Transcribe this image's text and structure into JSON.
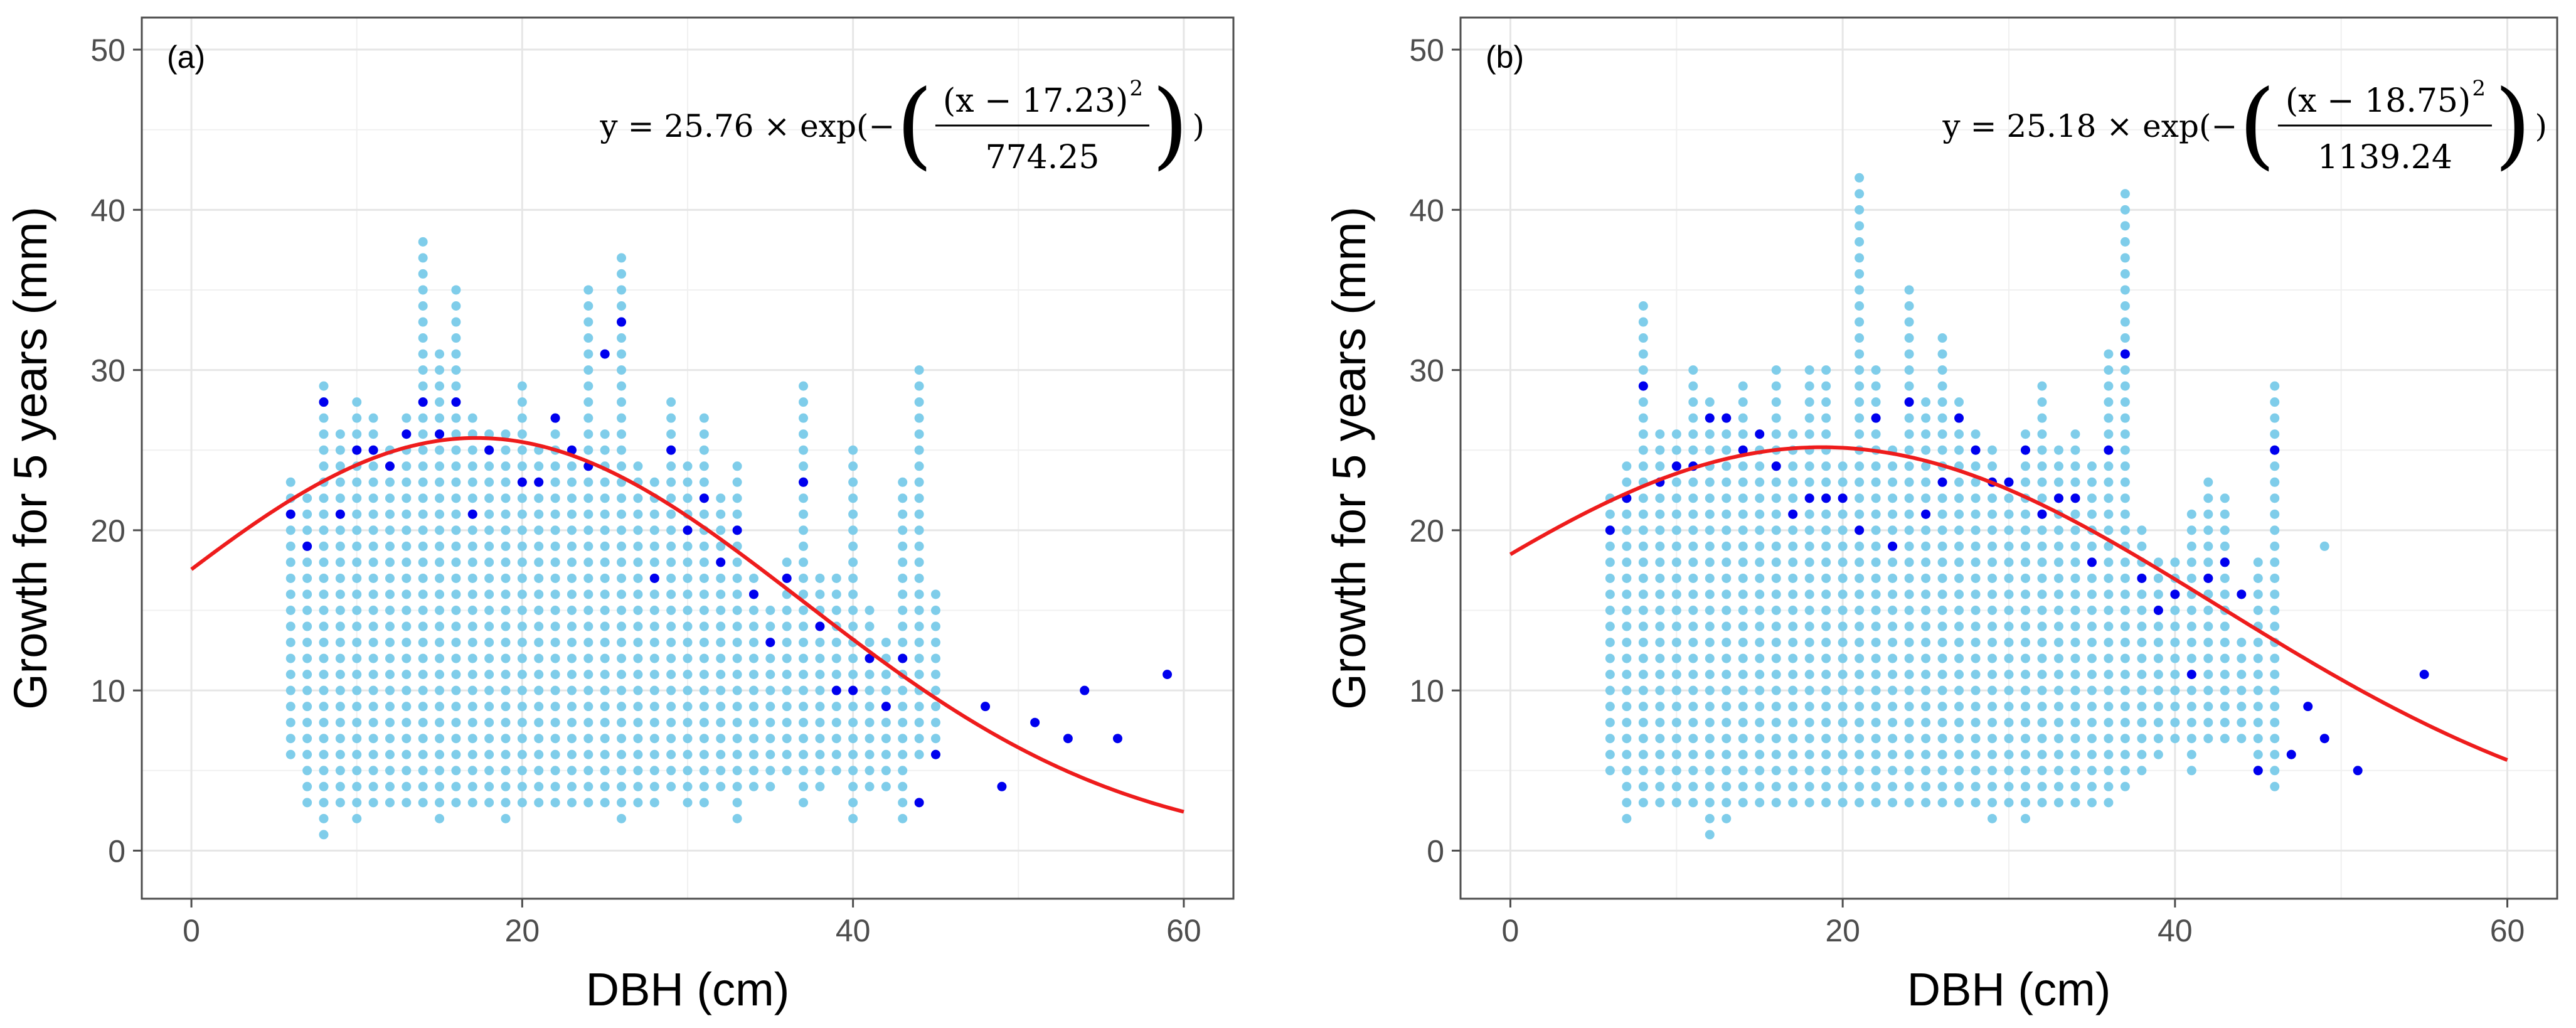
{
  "chart_data": [
    {
      "type": "scatter",
      "panel_label": "(a)",
      "xlabel": "DBH (cm)",
      "ylabel": "Growth for 5 years (mm)",
      "xlim": [
        -3,
        63
      ],
      "ylim": [
        -3,
        52
      ],
      "xticks": [
        0,
        20,
        40,
        60
      ],
      "yticks": [
        0,
        10,
        20,
        30,
        40,
        50
      ],
      "grid": true,
      "equation": {
        "lhs": "y = 25.76 × exp(−",
        "numerator": "(x − 17.23)",
        "exponent": "2",
        "denominator": "774.25",
        "tail": ")"
      },
      "fit": {
        "a": 25.76,
        "mu": 17.23,
        "c": 774.25,
        "x_range": [
          0,
          60
        ]
      },
      "cloud": {
        "color": "#7fcdea",
        "columns": [
          [
            6,
            6,
            23
          ],
          [
            7,
            3,
            22
          ],
          [
            8,
            1,
            29
          ],
          [
            9,
            3,
            26
          ],
          [
            10,
            2,
            28
          ],
          [
            11,
            3,
            27
          ],
          [
            12,
            3,
            25
          ],
          [
            13,
            3,
            27
          ],
          [
            14,
            3,
            38
          ],
          [
            15,
            2,
            31
          ],
          [
            16,
            3,
            35
          ],
          [
            17,
            3,
            27
          ],
          [
            18,
            3,
            26
          ],
          [
            19,
            2,
            26
          ],
          [
            20,
            3,
            29
          ],
          [
            21,
            3,
            25
          ],
          [
            22,
            3,
            27
          ],
          [
            23,
            3,
            24
          ],
          [
            24,
            3,
            35
          ],
          [
            25,
            3,
            26
          ],
          [
            26,
            2,
            37
          ],
          [
            27,
            3,
            24
          ],
          [
            28,
            3,
            23
          ],
          [
            29,
            4,
            28
          ],
          [
            30,
            3,
            24
          ],
          [
            31,
            3,
            27
          ],
          [
            32,
            4,
            22
          ],
          [
            33,
            2,
            24
          ],
          [
            34,
            4,
            17
          ],
          [
            35,
            4,
            15
          ],
          [
            36,
            5,
            18
          ],
          [
            37,
            3,
            29
          ],
          [
            38,
            4,
            17
          ],
          [
            39,
            5,
            17
          ],
          [
            40,
            2,
            25
          ],
          [
            41,
            4,
            15
          ],
          [
            42,
            4,
            13
          ],
          [
            43,
            2,
            23
          ],
          [
            44,
            6,
            30
          ],
          [
            45,
            6,
            16
          ]
        ]
      },
      "highlight_points": {
        "color": "#0000ee",
        "points": [
          [
            6,
            21
          ],
          [
            7,
            19
          ],
          [
            8,
            28
          ],
          [
            9,
            21
          ],
          [
            10,
            25
          ],
          [
            11,
            25
          ],
          [
            12,
            24
          ],
          [
            13,
            26
          ],
          [
            14,
            28
          ],
          [
            15,
            26
          ],
          [
            16,
            28
          ],
          [
            17,
            21
          ],
          [
            18,
            25
          ],
          [
            20,
            23
          ],
          [
            21,
            23
          ],
          [
            22,
            27
          ],
          [
            23,
            25
          ],
          [
            24,
            24
          ],
          [
            25,
            31
          ],
          [
            26,
            33
          ],
          [
            28,
            17
          ],
          [
            29,
            25
          ],
          [
            30,
            20
          ],
          [
            31,
            22
          ],
          [
            32,
            18
          ],
          [
            33,
            20
          ],
          [
            34,
            16
          ],
          [
            35,
            13
          ],
          [
            36,
            17
          ],
          [
            37,
            23
          ],
          [
            38,
            14
          ],
          [
            39,
            10
          ],
          [
            40,
            10
          ],
          [
            41,
            12
          ],
          [
            42,
            9
          ],
          [
            43,
            12
          ],
          [
            44,
            3
          ],
          [
            45,
            6
          ],
          [
            48,
            9
          ],
          [
            49,
            4
          ],
          [
            51,
            8
          ],
          [
            53,
            7
          ],
          [
            54,
            10
          ],
          [
            56,
            7
          ],
          [
            59,
            11
          ]
        ]
      }
    },
    {
      "type": "scatter",
      "panel_label": "(b)",
      "xlabel": "DBH (cm)",
      "ylabel": "Growth for 5 years (mm)",
      "xlim": [
        -3,
        63
      ],
      "ylim": [
        -3,
        52
      ],
      "xticks": [
        0,
        20,
        40,
        60
      ],
      "yticks": [
        0,
        10,
        20,
        30,
        40,
        50
      ],
      "grid": true,
      "equation": {
        "lhs": "y = 25.18 × exp(−",
        "numerator": "(x − 18.75)",
        "exponent": "2",
        "denominator": "1139.24",
        "tail": ")"
      },
      "fit": {
        "a": 25.18,
        "mu": 18.75,
        "c": 1139.24,
        "x_range": [
          0,
          60
        ]
      },
      "cloud": {
        "color": "#7fcdea",
        "columns": [
          [
            6,
            5,
            22
          ],
          [
            7,
            2,
            24
          ],
          [
            8,
            3,
            34
          ],
          [
            9,
            3,
            26
          ],
          [
            10,
            3,
            26
          ],
          [
            11,
            3,
            30
          ],
          [
            12,
            1,
            28
          ],
          [
            13,
            2,
            27
          ],
          [
            14,
            3,
            29
          ],
          [
            15,
            3,
            26
          ],
          [
            16,
            3,
            30
          ],
          [
            17,
            3,
            26
          ],
          [
            18,
            3,
            30
          ],
          [
            19,
            3,
            30
          ],
          [
            20,
            3,
            24
          ],
          [
            21,
            3,
            42
          ],
          [
            22,
            3,
            30
          ],
          [
            23,
            3,
            25
          ],
          [
            24,
            3,
            35
          ],
          [
            25,
            3,
            28
          ],
          [
            26,
            3,
            32
          ],
          [
            27,
            3,
            28
          ],
          [
            28,
            3,
            26
          ],
          [
            29,
            2,
            25
          ],
          [
            30,
            3,
            23
          ],
          [
            31,
            2,
            26
          ],
          [
            32,
            3,
            29
          ],
          [
            33,
            3,
            25
          ],
          [
            34,
            3,
            26
          ],
          [
            35,
            3,
            24
          ],
          [
            36,
            3,
            31
          ],
          [
            37,
            4,
            41
          ],
          [
            38,
            5,
            20
          ],
          [
            39,
            6,
            18
          ],
          [
            40,
            7,
            18
          ],
          [
            41,
            5,
            21
          ],
          [
            42,
            7,
            23
          ],
          [
            43,
            7,
            22
          ],
          [
            44,
            7,
            13
          ],
          [
            45,
            5,
            18
          ],
          [
            46,
            4,
            29
          ],
          [
            49,
            19,
            19
          ]
        ]
      },
      "highlight_points": {
        "color": "#0000ee",
        "points": [
          [
            6,
            20
          ],
          [
            7,
            22
          ],
          [
            8,
            29
          ],
          [
            9,
            23
          ],
          [
            10,
            24
          ],
          [
            11,
            24
          ],
          [
            12,
            27
          ],
          [
            13,
            27
          ],
          [
            14,
            25
          ],
          [
            15,
            26
          ],
          [
            16,
            24
          ],
          [
            17,
            21
          ],
          [
            18,
            22
          ],
          [
            19,
            22
          ],
          [
            20,
            22
          ],
          [
            21,
            20
          ],
          [
            22,
            27
          ],
          [
            23,
            19
          ],
          [
            24,
            28
          ],
          [
            25,
            21
          ],
          [
            26,
            23
          ],
          [
            27,
            27
          ],
          [
            28,
            25
          ],
          [
            29,
            23
          ],
          [
            30,
            23
          ],
          [
            31,
            25
          ],
          [
            32,
            21
          ],
          [
            33,
            22
          ],
          [
            34,
            22
          ],
          [
            35,
            18
          ],
          [
            36,
            25
          ],
          [
            37,
            31
          ],
          [
            38,
            17
          ],
          [
            39,
            15
          ],
          [
            40,
            16
          ],
          [
            41,
            11
          ],
          [
            42,
            17
          ],
          [
            43,
            18
          ],
          [
            44,
            16
          ],
          [
            45,
            5
          ],
          [
            46,
            25
          ],
          [
            47,
            6
          ],
          [
            48,
            9
          ],
          [
            49,
            7
          ],
          [
            51,
            5
          ],
          [
            55,
            11
          ]
        ]
      }
    }
  ]
}
